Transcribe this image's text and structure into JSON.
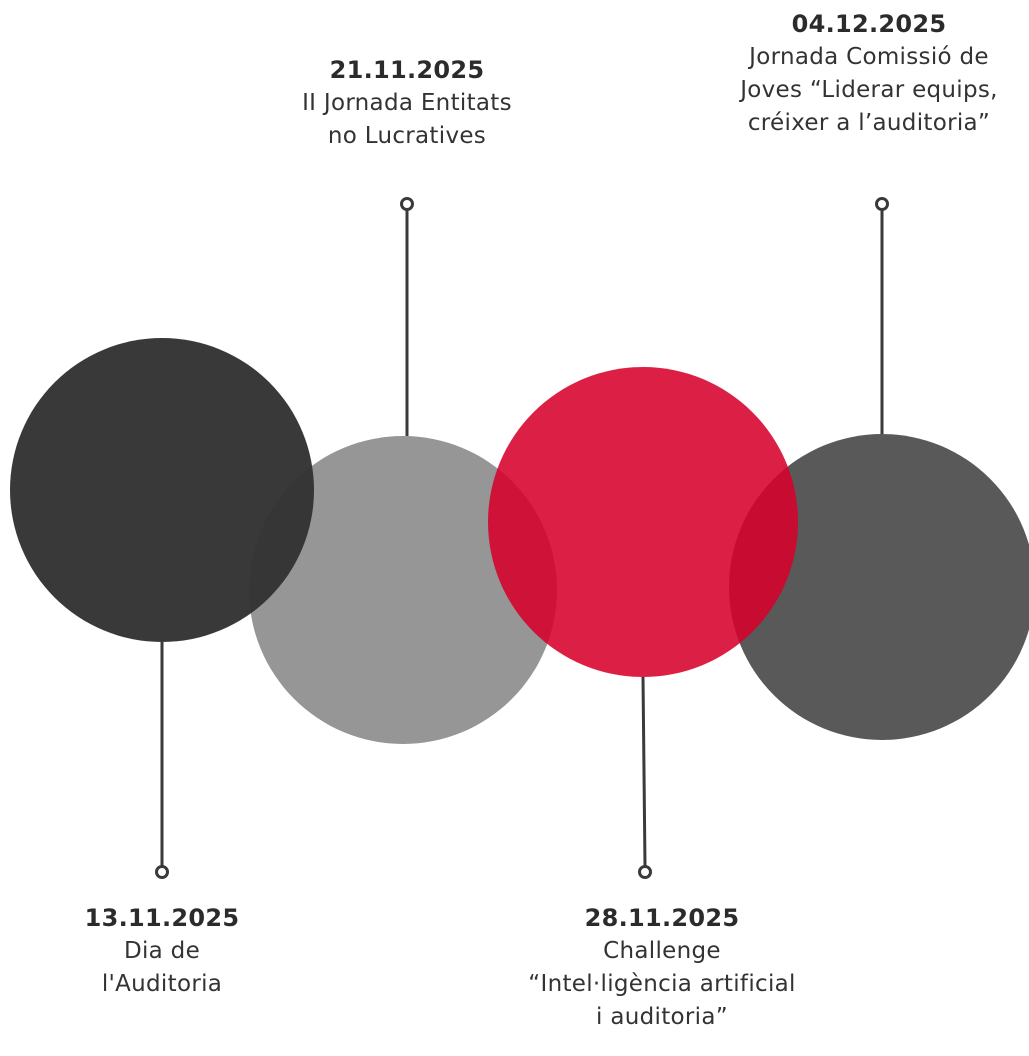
{
  "events": [
    {
      "id": "dia-auditoria",
      "date": "13.11.2025",
      "lines": [
        "Dia de",
        "l'Auditoria"
      ],
      "color": "#333333"
    },
    {
      "id": "jornada-entitats",
      "date": "21.11.2025",
      "lines": [
        "II Jornada Entitats",
        "no Lucratives"
      ],
      "color": "#969696"
    },
    {
      "id": "challenge-ia",
      "date": "28.11.2025",
      "lines": [
        "Challenge",
        "“Intel·ligència artificial",
        "i auditoria”"
      ],
      "color": "#d6002b"
    },
    {
      "id": "jornada-joves",
      "date": "04.12.2025",
      "lines": [
        "Jornada Comissió de",
        "Joves “Liderar equips,",
        "créixer a l’auditoria”"
      ],
      "color": "#595959"
    }
  ]
}
